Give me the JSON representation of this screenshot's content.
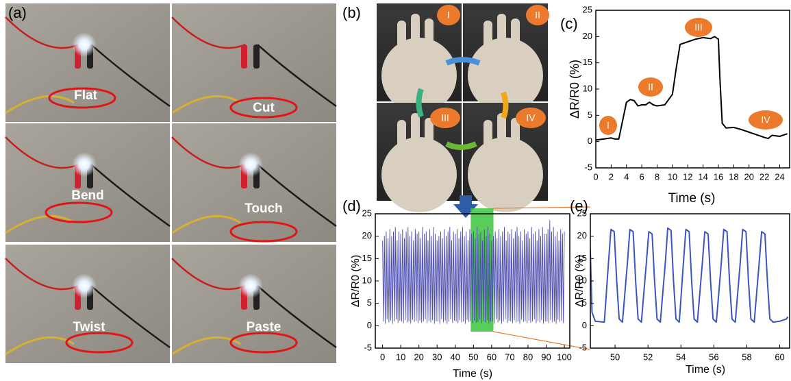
{
  "figure": {
    "a": {
      "label": "(a)",
      "captions": [
        "Flat",
        "Cut",
        "Bend",
        "Touch",
        "Twist",
        "Paste"
      ]
    },
    "b": {
      "label": "(b)",
      "stages": [
        "I",
        "II",
        "III",
        "IV"
      ]
    }
  },
  "chart_data": [
    {
      "type": "line",
      "label": "(c)",
      "x_label": "Time (s)",
      "y_label": "ΔR/R0 (%)",
      "color": "#000000",
      "annotations": [
        "I",
        "II",
        "III",
        "IV"
      ],
      "x": [
        0,
        1,
        2,
        2.5,
        3,
        3.5,
        4,
        4.5,
        5,
        5.5,
        6,
        6.5,
        7,
        7.5,
        8,
        9,
        10,
        10.5,
        11,
        12,
        13,
        14,
        15,
        15.5,
        16,
        16.2,
        16.5,
        17,
        18,
        19,
        20,
        21,
        22,
        22.5,
        23,
        24,
        25
      ],
      "values": [
        0.3,
        0.5,
        0.7,
        0.5,
        0.5,
        4,
        7.5,
        8,
        7.8,
        6.8,
        7,
        7,
        7.5,
        7,
        6.8,
        7,
        9,
        14,
        18.5,
        19,
        19.5,
        19.8,
        19.6,
        20,
        19.5,
        12,
        3.5,
        2.6,
        2.7,
        2.3,
        1.8,
        1.3,
        0.8,
        0.6,
        1.2,
        1,
        1.5
      ],
      "xlim": [
        0,
        25.3
      ],
      "ylim": [
        -5,
        25
      ],
      "xticks": [
        0,
        2,
        4,
        6,
        8,
        10,
        12,
        14,
        16,
        18,
        20,
        22,
        24
      ],
      "yticks": [
        -5,
        0,
        5,
        10,
        15,
        20,
        25
      ]
    },
    {
      "type": "line",
      "label": "(d)",
      "x_label": "Time (s)",
      "y_label": "ΔR/R0 (%)",
      "color": "#4a4ab0",
      "highlight": [
        48.5,
        61
      ],
      "highlight_color": "#3cc43c",
      "x": [
        0,
        0.5,
        1,
        1.5,
        2,
        2.5,
        3,
        3.5,
        4,
        4.5,
        5,
        5.5,
        6,
        6.5,
        7,
        7.5,
        8,
        8.5,
        9,
        9.5,
        10,
        10.5,
        11,
        11.5,
        12,
        12.5,
        13,
        13.5,
        14,
        14.5,
        15,
        15.5,
        16,
        16.5,
        17,
        17.5,
        18,
        18.5,
        19,
        19.5,
        20,
        20.5,
        21,
        21.5,
        22,
        22.5,
        23,
        23.5,
        24,
        24.5,
        25,
        25.5,
        26,
        26.5,
        27,
        27.5,
        28,
        28.5,
        29,
        29.5,
        30,
        30.5,
        31,
        31.5,
        32,
        32.5,
        33,
        33.5,
        34,
        34.5,
        35,
        35.5,
        36,
        36.5,
        37,
        37.5,
        38,
        38.5,
        39,
        39.5,
        40,
        40.5,
        41,
        41.5,
        42,
        42.5,
        43,
        43.5,
        44,
        44.5,
        45,
        45.5,
        46,
        46.5,
        47,
        47.5,
        48,
        48.5,
        49,
        49.5,
        50,
        50.5,
        51,
        51.5,
        52,
        52.5,
        53,
        53.5,
        54,
        54.5,
        55,
        55.5,
        56,
        56.5,
        57,
        57.5,
        58,
        58.5,
        59,
        59.5,
        60,
        60.5,
        61,
        61.5,
        62,
        62.5,
        63,
        63.5,
        64,
        64.5,
        65,
        65.5,
        66,
        66.5,
        67,
        67.5,
        68,
        68.5,
        69,
        69.5,
        70,
        70.5,
        71,
        71.5,
        72,
        72.5,
        73,
        73.5,
        74,
        74.5,
        75,
        75.5,
        76,
        76.5,
        77,
        77.5,
        78,
        78.5,
        79,
        79.5,
        80,
        80.5,
        81,
        81.5,
        82,
        82.5,
        83,
        83.5,
        84,
        84.5,
        85,
        85.5,
        86,
        86.5,
        87,
        87.5,
        88,
        88.5,
        89,
        89.5,
        90,
        90.5,
        91,
        91.5,
        92,
        92.5,
        93,
        93.5,
        94,
        94.5,
        95,
        95.5,
        96,
        96.5,
        97,
        97.5,
        98,
        98.5,
        99,
        99.5,
        100
      ],
      "values": [
        19,
        1,
        20,
        0.5,
        21,
        1.5,
        19.5,
        0.8,
        21.5,
        1.2,
        20,
        0.5,
        21,
        1,
        22,
        1.5,
        19,
        0.7,
        21,
        1.2,
        20.5,
        1,
        21.5,
        0.6,
        19.5,
        1.3,
        21,
        0.8,
        22,
        1,
        20,
        0.5,
        21,
        1.4,
        19,
        0.9,
        21.5,
        1.1,
        20.5,
        0.6,
        21,
        1.2,
        19.5,
        0.7,
        22,
        1,
        20.5,
        1.5,
        21,
        0.6,
        19,
        1.1,
        21.5,
        0.8,
        20,
        1.3,
        22,
        0.5,
        20.5,
        1,
        19,
        1,
        20,
        0.5,
        21,
        1.5,
        19.5,
        0.8,
        21.5,
        1.2,
        20,
        0.5,
        21,
        1,
        22,
        1.5,
        19,
        0.7,
        21,
        1.2,
        20.5,
        1,
        21.5,
        0.6,
        19.5,
        1.3,
        21,
        0.8,
        22,
        1,
        20,
        0.5,
        21,
        1.4,
        19,
        0.9,
        21.5,
        1.1,
        20.5,
        0.6,
        21,
        1.2,
        19.5,
        0.7,
        22,
        1,
        20.5,
        1.5,
        21,
        0.6,
        19,
        1.1,
        21.5,
        0.8,
        20,
        1.3,
        22,
        0.5,
        20.5,
        1,
        19,
        1,
        20,
        0.5,
        21,
        1.5,
        19.5,
        0.8,
        21.5,
        1.2,
        20,
        0.5,
        21,
        1,
        22,
        1.5,
        19,
        0.7,
        21,
        1.2,
        20.5,
        1,
        21.5,
        0.6,
        19.5,
        1.3,
        21,
        0.8,
        22,
        1,
        20,
        0.5,
        21,
        1.4,
        19,
        0.9,
        21.5,
        1.1,
        20.5,
        0.6,
        21,
        1.2,
        19.5,
        0.7,
        22,
        1,
        20.5,
        1.5,
        21,
        0.6,
        19,
        1.1,
        21.5,
        0.8,
        20,
        1.3,
        22,
        0.5,
        20.5,
        1,
        20.5,
        1,
        21.5,
        0.6,
        23.5,
        1.3,
        21,
        0.8,
        22,
        1,
        20,
        0.5,
        21,
        1.4,
        19,
        0.9,
        21.5,
        1.1,
        20.5,
        0.6,
        21
      ],
      "xlim": [
        -4,
        103
      ],
      "ylim": [
        -5,
        25
      ],
      "xticks": [
        0,
        10,
        20,
        30,
        40,
        50,
        60,
        70,
        80,
        90,
        100
      ],
      "yticks": [
        -5,
        0,
        5,
        10,
        15,
        20,
        25
      ]
    },
    {
      "type": "line",
      "label": "(e)",
      "x_label": "Time (s)",
      "y_label": "ΔR/R0 (%)",
      "color": "#3a55c0",
      "x": [
        48.5,
        48.6,
        48.8,
        49.35,
        49.6,
        49.75,
        49.95,
        50.1,
        50.25,
        50.45,
        50.75,
        50.9,
        51.1,
        51.25,
        51.4,
        51.6,
        51.9,
        52.05,
        52.25,
        52.4,
        52.55,
        52.75,
        53.05,
        53.2,
        53.4,
        53.55,
        53.7,
        53.9,
        54.15,
        54.3,
        54.5,
        54.65,
        54.8,
        55,
        55.3,
        55.45,
        55.65,
        55.8,
        55.95,
        56.15,
        56.45,
        56.6,
        56.8,
        56.95,
        57.1,
        57.3,
        57.6,
        57.75,
        57.95,
        58.1,
        58.25,
        58.45,
        58.75,
        58.9,
        59.1,
        59.25,
        59.4,
        59.6,
        60,
        60.4,
        60.5
      ],
      "values": [
        17,
        3,
        1,
        0.8,
        14,
        21.5,
        21,
        10,
        1.5,
        0.8,
        14,
        21.5,
        21,
        10,
        1.5,
        0.8,
        14,
        21,
        20.5,
        10,
        1.5,
        0.8,
        14,
        21.8,
        21.3,
        10,
        1.5,
        0.8,
        14,
        21.5,
        21,
        10,
        1.5,
        0.8,
        14,
        21,
        20.5,
        10,
        1.5,
        0.8,
        14,
        21.5,
        21,
        10,
        1.5,
        0.8,
        14,
        21.5,
        21,
        10,
        1.5,
        0.8,
        14,
        21,
        20.5,
        10,
        1.5,
        0.8,
        1,
        1.5,
        2
      ],
      "xlim": [
        48.5,
        60.6
      ],
      "ylim": [
        -5,
        25
      ],
      "xticks": [
        50,
        52,
        54,
        56,
        58,
        60
      ],
      "yticks": [
        -5,
        0,
        5,
        10,
        15,
        20,
        25
      ]
    }
  ]
}
